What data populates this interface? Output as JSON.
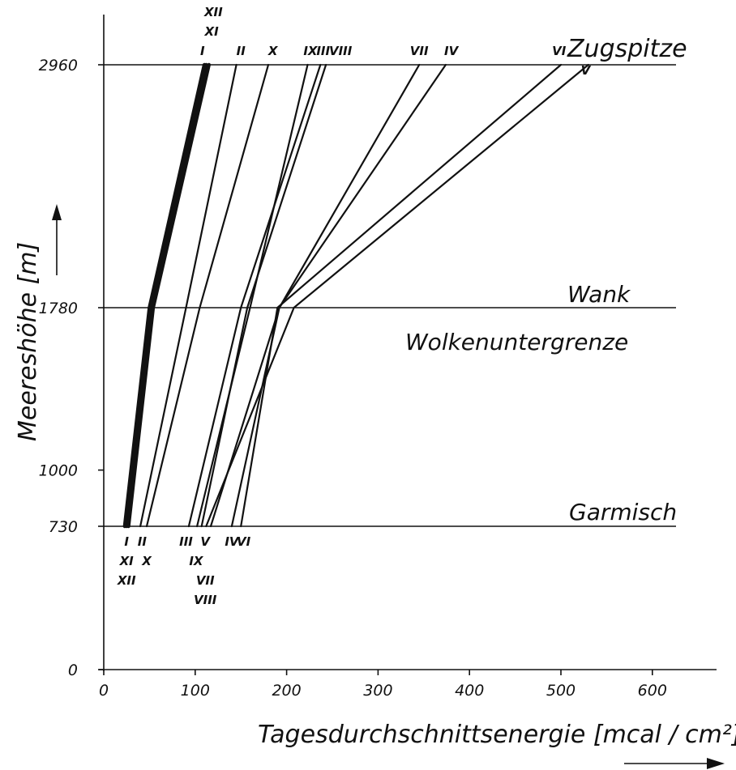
{
  "chart_data": {
    "type": "line",
    "xlabel": "Tagesdurchschnittsenergie [mcal / cm²]",
    "ylabel": "Meereshöhe [m]",
    "xlim": [
      0,
      650
    ],
    "ylim": [
      0,
      3300
    ],
    "xticks": [
      0,
      100,
      200,
      300,
      400,
      500,
      600
    ],
    "yticks": [
      0,
      730,
      1000,
      1780,
      2960
    ],
    "reference_lines": [
      {
        "y": 2960,
        "label": "Zugspitze"
      },
      {
        "y": 1780,
        "label": "Wank"
      },
      {
        "y": 730,
        "label": "Garmisch"
      }
    ],
    "annotation": "Wolkenuntergrenze",
    "x": [
      730,
      1780,
      2960
    ],
    "series": [
      {
        "name": "XII",
        "values": [
          23,
          50,
          110
        ]
      },
      {
        "name": "XI",
        "values": [
          25,
          52,
          112
        ]
      },
      {
        "name": "I",
        "values": [
          27,
          54,
          115
        ]
      },
      {
        "name": "II",
        "values": [
          40,
          90,
          145
        ]
      },
      {
        "name": "X",
        "values": [
          47,
          105,
          180
        ]
      },
      {
        "name": "III",
        "values": [
          93,
          150,
          237
        ]
      },
      {
        "name": "IX",
        "values": [
          102,
          160,
          223
        ]
      },
      {
        "name": "VIII",
        "values": [
          107,
          157,
          243
        ]
      },
      {
        "name": "V",
        "values": [
          112,
          208,
          530
        ]
      },
      {
        "name": "IV",
        "values": [
          140,
          192,
          374
        ]
      },
      {
        "name": "VI",
        "values": [
          150,
          190,
          500
        ]
      },
      {
        "name": "VII",
        "values": [
          117,
          192,
          345
        ]
      }
    ],
    "bottom_labels": [
      {
        "text": "I",
        "v": 25,
        "row": 0
      },
      {
        "text": "XI",
        "v": 25,
        "row": 1
      },
      {
        "text": "XII",
        "v": 25,
        "row": 2
      },
      {
        "text": "II",
        "v": 42,
        "row": 0
      },
      {
        "text": "X",
        "v": 47,
        "row": 1
      },
      {
        "text": "III",
        "v": 90,
        "row": 0
      },
      {
        "text": "V",
        "v": 111,
        "row": 0
      },
      {
        "text": "IX",
        "v": 101,
        "row": 1
      },
      {
        "text": "VII",
        "v": 111,
        "row": 2
      },
      {
        "text": "VIII",
        "v": 111,
        "row": 3
      },
      {
        "text": "IV",
        "v": 140,
        "row": 0
      },
      {
        "text": "VI",
        "v": 153,
        "row": 0
      }
    ],
    "top_labels": [
      {
        "text": "XII",
        "v": 120,
        "row": 2
      },
      {
        "text": "XI",
        "v": 118,
        "row": 1
      },
      {
        "text": "I",
        "v": 108,
        "row": 0
      },
      {
        "text": "II",
        "v": 150,
        "row": 0
      },
      {
        "text": "X",
        "v": 185,
        "row": 0
      },
      {
        "text": "IX",
        "v": 226,
        "row": 0
      },
      {
        "text": "III",
        "v": 240,
        "row": 0
      },
      {
        "text": "VIII",
        "v": 259,
        "row": 0
      },
      {
        "text": "VII",
        "v": 345,
        "row": 0
      },
      {
        "text": "IV",
        "v": 380,
        "row": 0
      },
      {
        "text": "VI",
        "v": 498,
        "row": 0
      },
      {
        "text": "V",
        "v": 527,
        "row": -1
      }
    ]
  }
}
